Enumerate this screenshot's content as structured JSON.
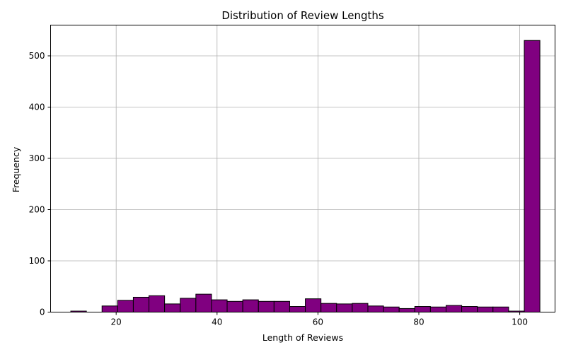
{
  "chart_data": {
    "type": "bar",
    "title": "Distribution of Review Lengths",
    "xlabel": "Length of Reviews",
    "ylabel": "Frequency",
    "xlim": [
      7,
      107
    ],
    "ylim": [
      0,
      560
    ],
    "xticks": [
      20,
      40,
      60,
      80,
      100
    ],
    "yticks": [
      0,
      100,
      200,
      300,
      400,
      500
    ],
    "grid": true,
    "bar_color": "#800080",
    "edge_color": "#000000",
    "bin_width": 3.1,
    "bins": [
      {
        "start": 11.0,
        "end": 14.1,
        "count": 2
      },
      {
        "start": 14.1,
        "end": 17.2,
        "count": 0
      },
      {
        "start": 17.2,
        "end": 20.3,
        "count": 12
      },
      {
        "start": 20.3,
        "end": 23.4,
        "count": 23
      },
      {
        "start": 23.4,
        "end": 26.5,
        "count": 29
      },
      {
        "start": 26.5,
        "end": 29.6,
        "count": 32
      },
      {
        "start": 29.6,
        "end": 32.7,
        "count": 16
      },
      {
        "start": 32.7,
        "end": 35.8,
        "count": 27
      },
      {
        "start": 35.8,
        "end": 38.9,
        "count": 35
      },
      {
        "start": 38.9,
        "end": 42.0,
        "count": 24
      },
      {
        "start": 42.0,
        "end": 45.1,
        "count": 21
      },
      {
        "start": 45.1,
        "end": 48.2,
        "count": 24
      },
      {
        "start": 48.2,
        "end": 51.3,
        "count": 21
      },
      {
        "start": 51.3,
        "end": 54.4,
        "count": 21
      },
      {
        "start": 54.4,
        "end": 57.5,
        "count": 11
      },
      {
        "start": 57.5,
        "end": 60.6,
        "count": 26
      },
      {
        "start": 60.6,
        "end": 63.7,
        "count": 17
      },
      {
        "start": 63.7,
        "end": 66.8,
        "count": 16
      },
      {
        "start": 66.8,
        "end": 69.9,
        "count": 17
      },
      {
        "start": 69.9,
        "end": 73.0,
        "count": 12
      },
      {
        "start": 73.0,
        "end": 76.1,
        "count": 10
      },
      {
        "start": 76.1,
        "end": 79.2,
        "count": 7
      },
      {
        "start": 79.2,
        "end": 82.3,
        "count": 11
      },
      {
        "start": 82.3,
        "end": 85.4,
        "count": 10
      },
      {
        "start": 85.4,
        "end": 88.5,
        "count": 13
      },
      {
        "start": 88.5,
        "end": 91.6,
        "count": 11
      },
      {
        "start": 91.6,
        "end": 94.7,
        "count": 10
      },
      {
        "start": 94.7,
        "end": 97.8,
        "count": 10
      },
      {
        "start": 97.8,
        "end": 100.9,
        "count": 2
      },
      {
        "start": 100.9,
        "end": 104.0,
        "count": 530
      }
    ]
  }
}
